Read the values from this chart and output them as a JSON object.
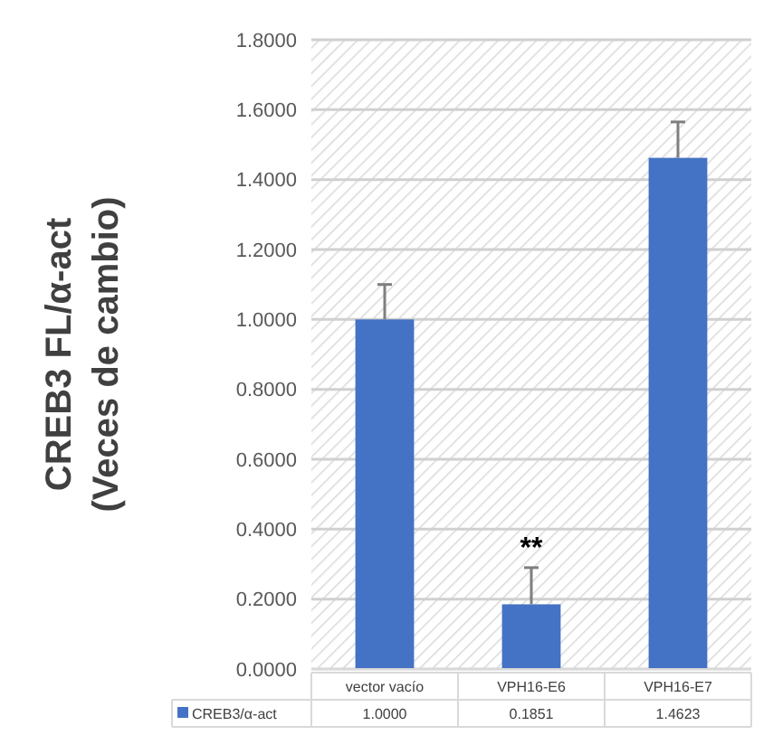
{
  "chart_data": {
    "type": "bar",
    "ylabel": "CREB3 FL/α-act\n(Veces de cambio)",
    "categories": [
      "vector vacío",
      "VPH16-E6",
      "VPH16-E7"
    ],
    "series": [
      {
        "name": "CREB3/α-act",
        "color": "#4472c4",
        "values": [
          1.0,
          0.1851,
          1.4623
        ],
        "errors": [
          [
            1.0,
            1.1
          ],
          [
            0.1851,
            0.29
          ],
          [
            1.4623,
            1.565
          ]
        ],
        "value_labels": [
          "1.0000",
          "0.1851",
          "1.4623"
        ]
      }
    ],
    "ylim": [
      0,
      1.8
    ],
    "yticks": [
      {
        "value": 0,
        "label": "0.0000"
      },
      {
        "value": 0.2,
        "label": "0.2000"
      },
      {
        "value": 0.4,
        "label": "0.4000"
      },
      {
        "value": 0.6,
        "label": "0.6000"
      },
      {
        "value": 0.8,
        "label": "0.8000"
      },
      {
        "value": 1.0,
        "label": "1.0000"
      },
      {
        "value": 1.2,
        "label": "1.2000"
      },
      {
        "value": 1.4,
        "label": "1.4000"
      },
      {
        "value": 1.6,
        "label": "1.6000"
      },
      {
        "value": 1.8,
        "label": "1.8000"
      }
    ],
    "grid": "y",
    "legend": "bottom",
    "data_labels": true,
    "annotations": [
      {
        "text": "**",
        "x": "VPH16-E6",
        "y": 0.29
      }
    ]
  }
}
